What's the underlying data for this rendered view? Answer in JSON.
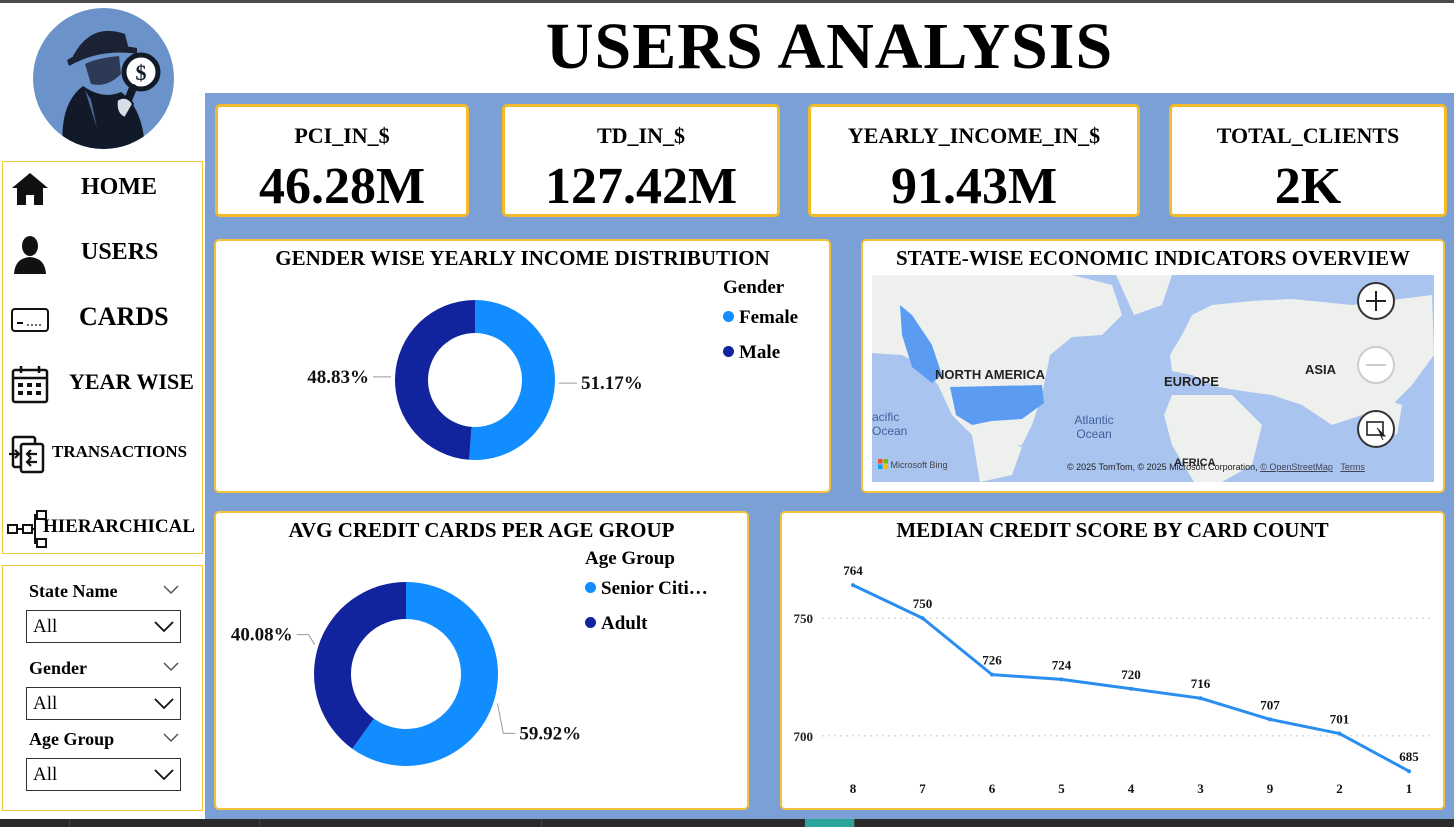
{
  "header": {
    "title": "USERS ANALYSIS"
  },
  "nav": {
    "items": [
      {
        "label": "HOME",
        "icon": "home-icon"
      },
      {
        "label": "USERS",
        "icon": "user-icon"
      },
      {
        "label": "CARDS",
        "icon": "credit-card-icon"
      },
      {
        "label": "YEAR WISE",
        "icon": "calendar-icon"
      },
      {
        "label": "TRANSACTIONS",
        "icon": "transactions-icon"
      },
      {
        "label": "HIERARCHICAL",
        "icon": "hierarchy-icon"
      }
    ]
  },
  "filters": [
    {
      "label": "State Name",
      "value": "All"
    },
    {
      "label": "Gender",
      "value": "All"
    },
    {
      "label": "Age Group",
      "value": "All"
    }
  ],
  "kpis": [
    {
      "title": "PCI_IN_$",
      "value": "46.28M"
    },
    {
      "title": "TD_IN_$",
      "value": "127.42M"
    },
    {
      "title": "YEARLY_INCOME_IN_$",
      "value": "91.43M"
    },
    {
      "title": "TOTAL_CLIENTS",
      "value": "2K"
    }
  ],
  "map_card": {
    "title": "STATE-WISE ECONOMIC INDICATORS OVERVIEW",
    "labels": {
      "na": "NORTH AMERICA",
      "eu": "EUROPE",
      "asia": "ASIA",
      "africa": "AFRICA",
      "pacific": "acific\nOcean",
      "atlantic": "Atlantic\nOcean"
    },
    "attribution": "© 2025 TomTom, © 2025 Microsoft Corporation, ",
    "osm_link": "© OpenStreetMap",
    "terms_link": "Terms",
    "bing": "Microsoft Bing"
  },
  "colors": {
    "female": "#118dff",
    "male": "#12239e",
    "accent_border": "#f3c23a",
    "canvas": "#7aa0d6",
    "line": "#2a8ef0"
  },
  "chart_data": [
    {
      "type": "pie",
      "title": "GENDER WISE YEARLY INCOME DISTRIBUTION",
      "legend_title": "Gender",
      "legend": "top-right",
      "slices": [
        {
          "name": "Female",
          "value": 51.17,
          "label": "51.17%",
          "color": "#118dff"
        },
        {
          "name": "Male",
          "value": 48.83,
          "label": "48.83%",
          "color": "#12239e"
        }
      ]
    },
    {
      "type": "pie",
      "title": "AVG CREDIT CARDS PER AGE GROUP",
      "legend_title": "Age Group",
      "legend": "top-right",
      "slices": [
        {
          "name": "Senior Citi…",
          "value": 59.92,
          "label": "59.92%",
          "color": "#118dff"
        },
        {
          "name": "Adult",
          "value": 40.08,
          "label": "40.08%",
          "color": "#12239e"
        }
      ]
    },
    {
      "type": "line",
      "title": "MEDIAN CREDIT SCORE BY CARD COUNT",
      "categories": [
        "8",
        "7",
        "6",
        "5",
        "4",
        "3",
        "9",
        "2",
        "1"
      ],
      "values": [
        764,
        750,
        726,
        724,
        720,
        716,
        707,
        701,
        685
      ],
      "yticks": [
        700,
        750
      ],
      "ylim": [
        680,
        770
      ],
      "grid": "dotted horizontal"
    }
  ]
}
